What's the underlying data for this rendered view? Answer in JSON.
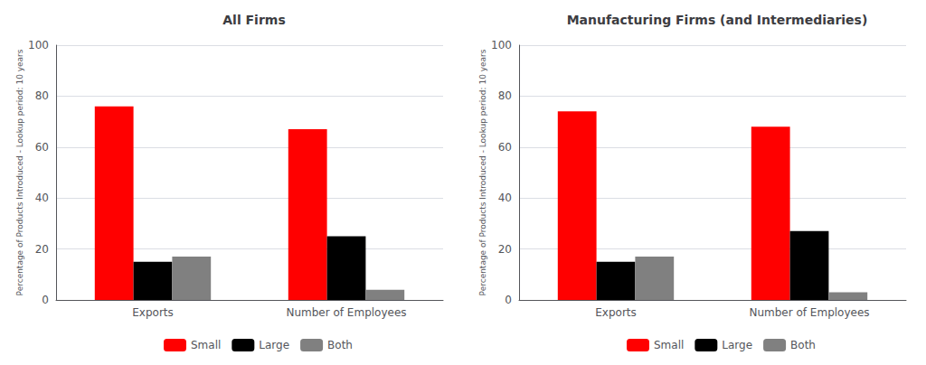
{
  "chart_data": [
    {
      "type": "bar",
      "title": "All Firms",
      "ylabel": "Percentage of Products Introduced - Lookup period: 10 years",
      "categories": [
        "Exports",
        "Number of Employees"
      ],
      "series": [
        {
          "name": "Small",
          "color": "#ff0000",
          "values": [
            76,
            67
          ]
        },
        {
          "name": "Large",
          "color": "#000000",
          "values": [
            15,
            25
          ]
        },
        {
          "name": "Both",
          "color": "#808080",
          "values": [
            17,
            4
          ]
        }
      ],
      "ylim": [
        0,
        100
      ],
      "yticks": [
        0,
        20,
        40,
        60,
        80,
        100
      ],
      "grid": true,
      "legend": "bottom"
    },
    {
      "type": "bar",
      "title": "Manufacturing Firms (and Intermediaries)",
      "ylabel": "Percentage of Products Introduced - Lookup period: 10 years",
      "categories": [
        "Exports",
        "Number of Employees"
      ],
      "series": [
        {
          "name": "Small",
          "color": "#ff0000",
          "values": [
            74,
            68
          ]
        },
        {
          "name": "Large",
          "color": "#000000",
          "values": [
            15,
            27
          ]
        },
        {
          "name": "Both",
          "color": "#808080",
          "values": [
            17,
            3
          ]
        }
      ],
      "ylim": [
        0,
        100
      ],
      "yticks": [
        0,
        20,
        40,
        60,
        80,
        100
      ],
      "grid": true,
      "legend": "bottom"
    }
  ]
}
